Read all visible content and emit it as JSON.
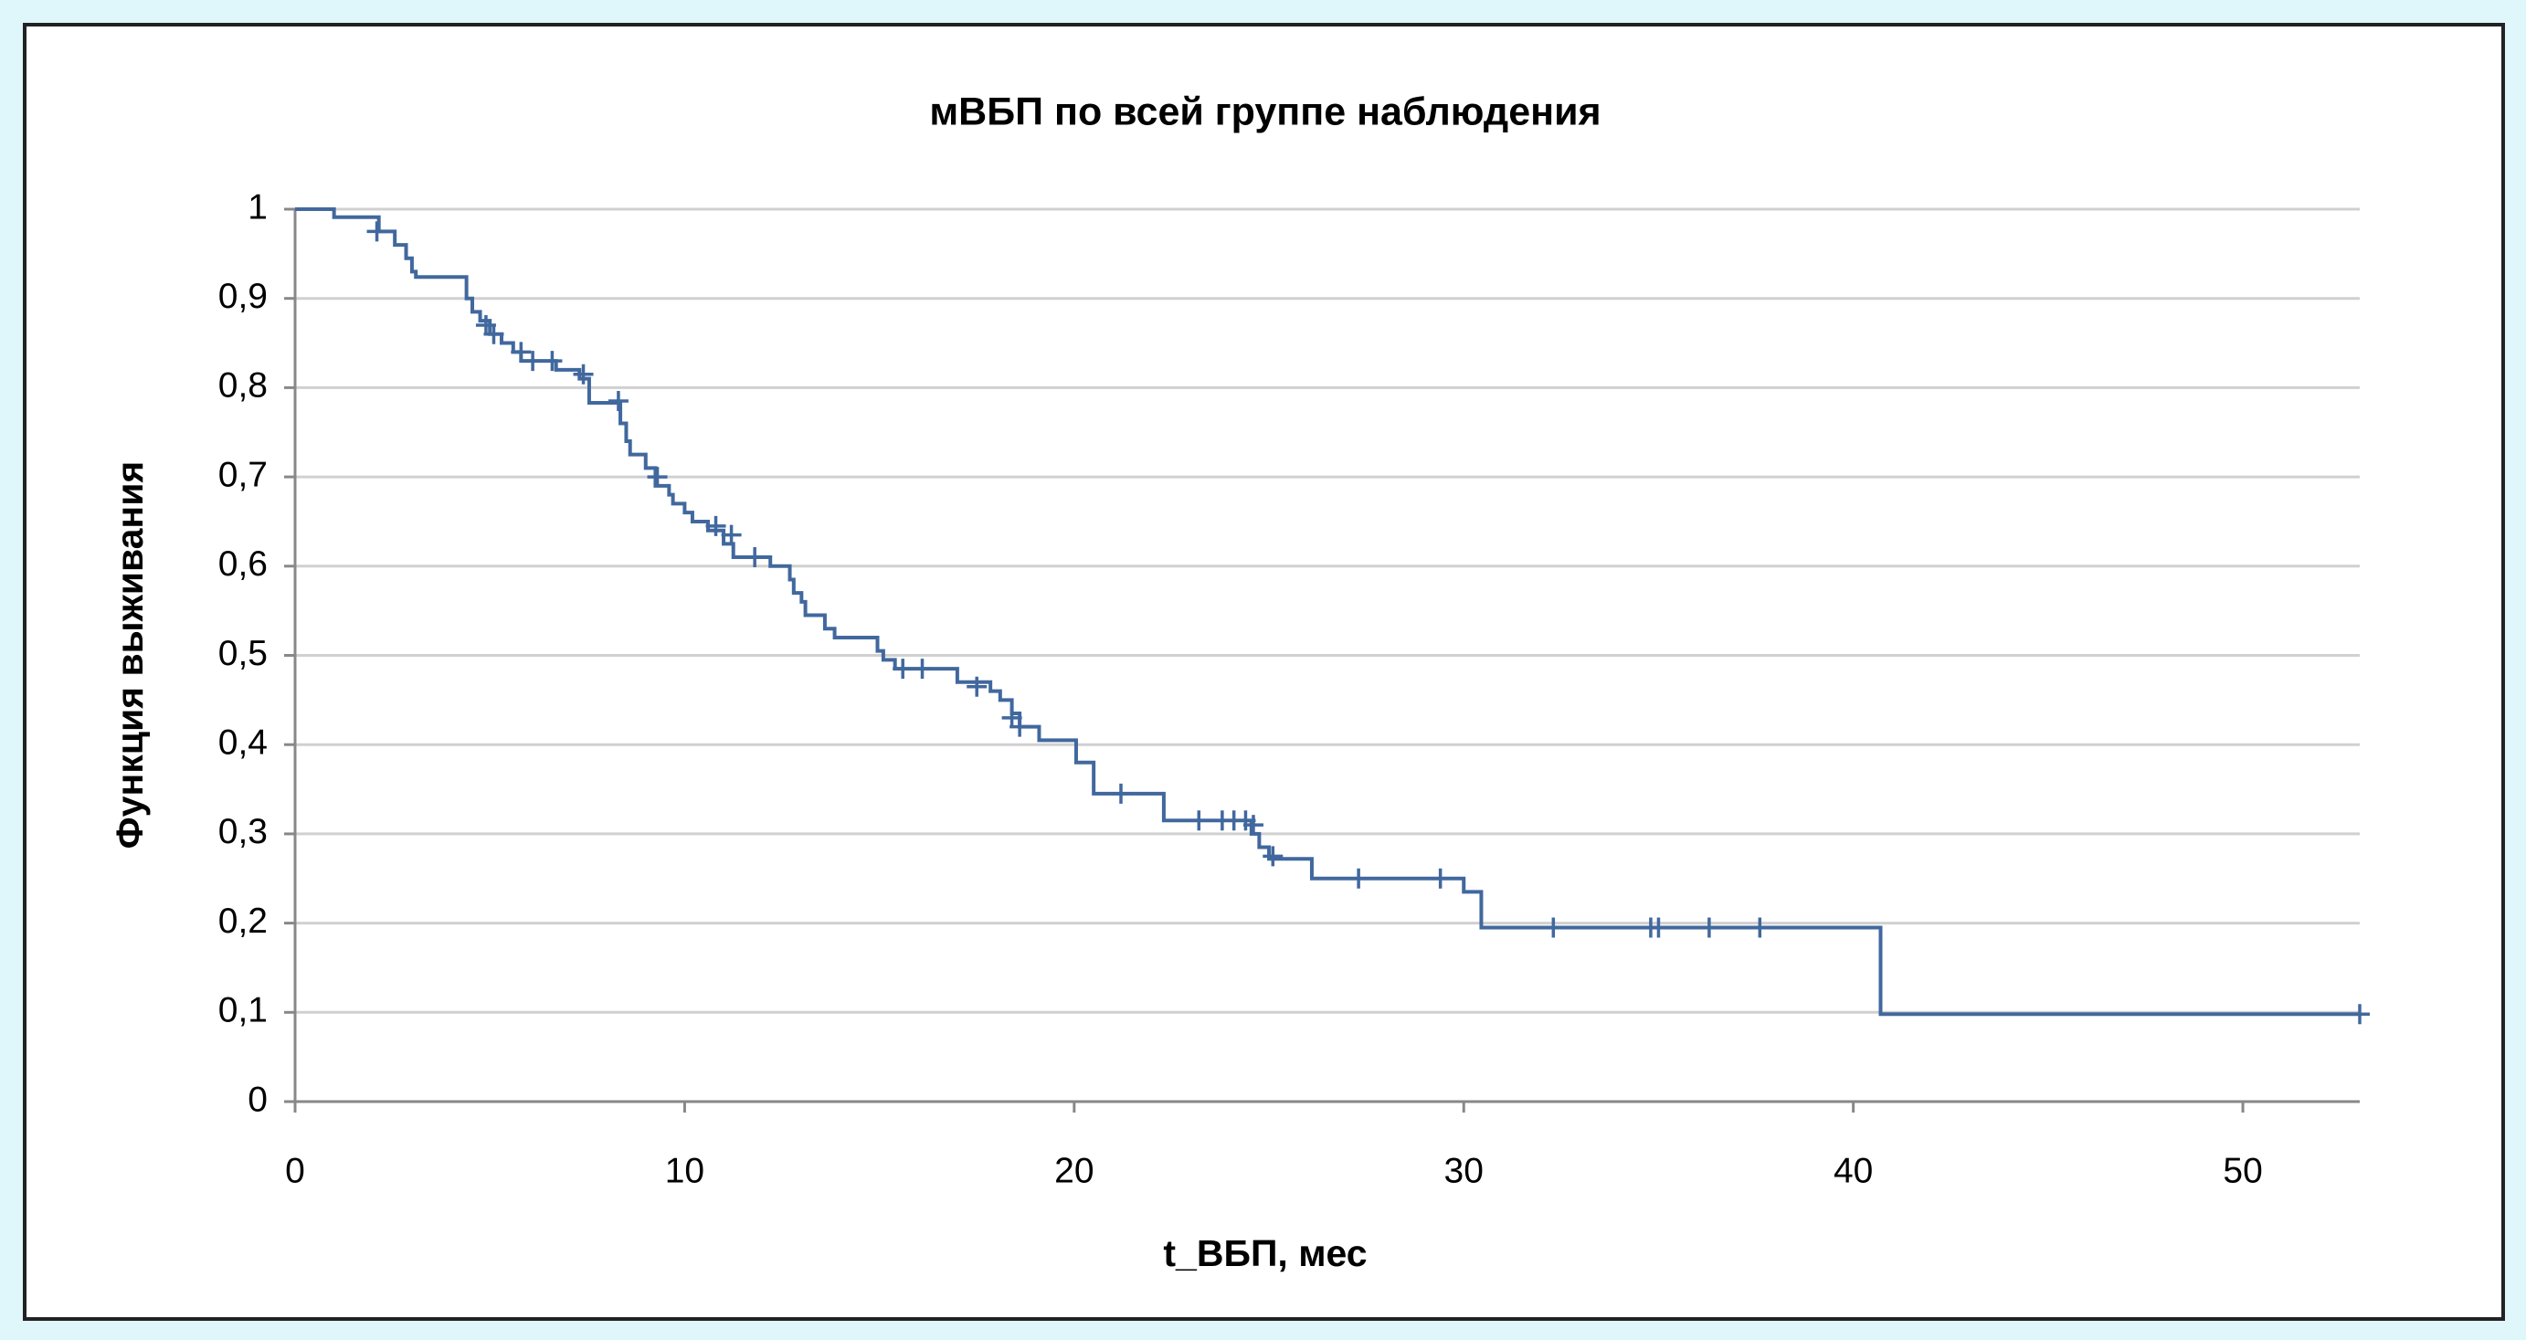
{
  "chart_data": {
    "type": "step",
    "title": "мВБП по всей группе наблюдения",
    "x_label": "t_ВБП, мес",
    "y_label": "Функция выживания",
    "color": "#41689e",
    "grid": true,
    "xlim": [
      0,
      53
    ],
    "ylim": [
      0,
      1
    ],
    "xticks": [
      0,
      10,
      20,
      30,
      40,
      50
    ],
    "yticks": [
      0,
      {
        "value": 0.1,
        "label": "0,1"
      },
      {
        "value": 0.2,
        "label": "0,2"
      },
      {
        "value": 0.3,
        "label": "0,3"
      },
      {
        "value": 0.4,
        "label": "0,4"
      },
      {
        "value": 0.5,
        "label": "0,5"
      },
      {
        "value": 0.6,
        "label": "0,6"
      },
      {
        "value": 0.7,
        "label": "0,7"
      },
      {
        "value": 0.8,
        "label": "0,8"
      },
      {
        "value": 0.9,
        "label": "0,9"
      },
      1
    ],
    "x": [
      0,
      1.0,
      2.15,
      2.56,
      2.85,
      3.0,
      3.1,
      4.4,
      4.55,
      4.75,
      5.0,
      5.3,
      5.6,
      5.8,
      6.7,
      7.3,
      7.55,
      8.35,
      8.5,
      8.6,
      9.0,
      9.25,
      9.6,
      9.7,
      10.0,
      10.2,
      10.6,
      11.0,
      11.25,
      12.2,
      12.7,
      12.8,
      13.0,
      13.1,
      13.6,
      13.85,
      14.95,
      15.1,
      15.4,
      17.0,
      17.85,
      18.1,
      18.4,
      18.6,
      19.1,
      20.05,
      20.5,
      22.3,
      24.55,
      24.75,
      25.0,
      26.1,
      30.0,
      30.45,
      40.7,
      53
    ],
    "values": [
      1,
      0.991,
      0.975,
      0.96,
      0.945,
      0.93,
      0.924,
      0.9,
      0.885,
      0.875,
      0.86,
      0.85,
      0.84,
      0.83,
      0.82,
      0.81,
      0.783,
      0.76,
      0.74,
      0.725,
      0.71,
      0.69,
      0.68,
      0.67,
      0.66,
      0.65,
      0.64,
      0.625,
      0.61,
      0.6,
      0.585,
      0.57,
      0.56,
      0.545,
      0.53,
      0.52,
      0.505,
      0.495,
      0.485,
      0.47,
      0.46,
      0.45,
      0.435,
      0.42,
      0.405,
      0.38,
      0.345,
      0.315,
      0.3,
      0.285,
      0.272,
      0.25,
      0.235,
      0.195,
      0.098,
      0.098
    ],
    "censored": {
      "x": [
        2.1,
        4.9,
        5.1,
        5.8,
        6.1,
        6.6,
        7.4,
        8.3,
        9.3,
        10.8,
        11.2,
        11.8,
        15.6,
        16.1,
        17.5,
        18.4,
        18.6,
        21.2,
        23.2,
        23.8,
        24.1,
        24.4,
        24.6,
        25.1,
        27.3,
        29.4,
        32.3,
        34.8,
        35.0,
        36.3,
        37.6,
        53
      ],
      "values": [
        0.975,
        0.87,
        0.86,
        0.84,
        0.83,
        0.83,
        0.815,
        0.785,
        0.7,
        0.645,
        0.635,
        0.61,
        0.485,
        0.485,
        0.465,
        0.43,
        0.42,
        0.345,
        0.315,
        0.315,
        0.315,
        0.315,
        0.31,
        0.275,
        0.25,
        0.25,
        0.195,
        0.195,
        0.195,
        0.195,
        0.195,
        0.098
      ]
    }
  }
}
